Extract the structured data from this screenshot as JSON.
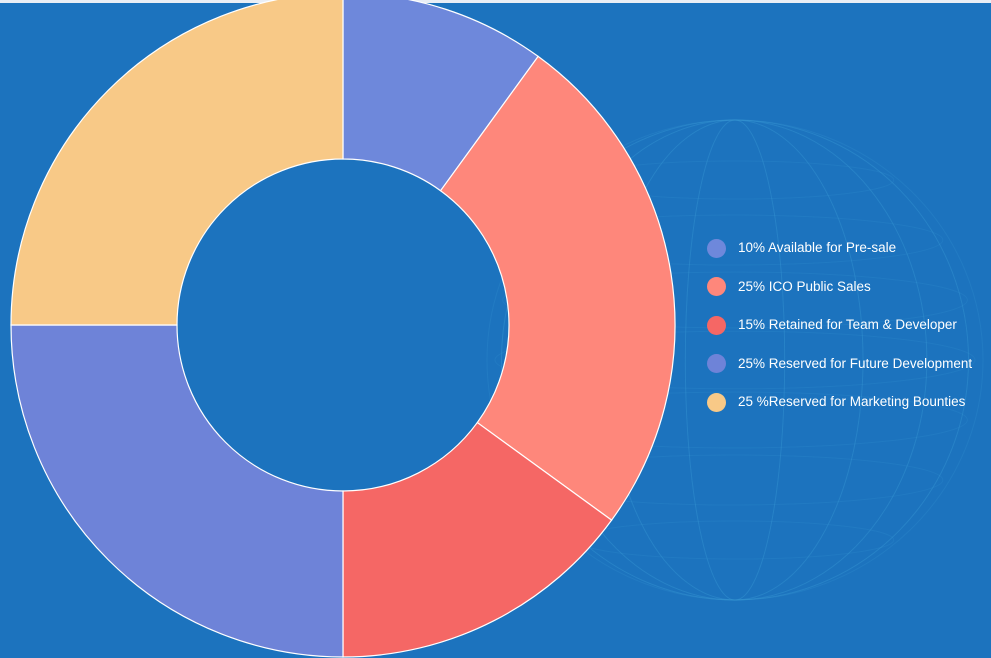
{
  "chart_data": {
    "type": "pie",
    "subtype": "donut",
    "categories": [
      "10% Available for Pre-sale",
      "25% ICO Public Sales",
      "15% Retained for Team & Developer",
      "25% Reserved for Future Development",
      "25 %Reserved for Marketing Bounties"
    ],
    "values": [
      10,
      25,
      15,
      25,
      25
    ],
    "colors": [
      "#6e88db",
      "#fe877b",
      "#f56765",
      "#6e83d8",
      "#f8c987"
    ],
    "legend_position": "right",
    "start_angle": "top",
    "direction": "clockwise"
  },
  "colors": {
    "background": "#1c73be",
    "slice_border": "#ffffff",
    "legend_text": "#ffffff"
  }
}
